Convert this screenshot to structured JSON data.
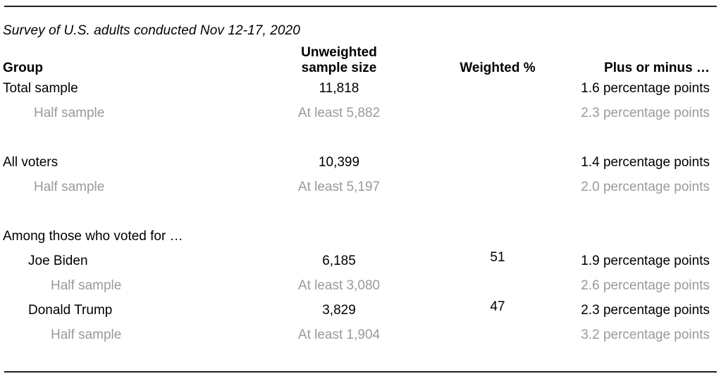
{
  "chart_data": {
    "type": "table",
    "subtitle": "Survey of U.S. adults conducted Nov 12-17, 2020",
    "columns": {
      "group": "Group",
      "unweighted_line1": "Unweighted",
      "unweighted_line2": "sample size",
      "weighted": "Weighted %",
      "moe": "Plus or minus …"
    },
    "rows": [
      {
        "group": "Total sample",
        "unweighted": "11,818",
        "weighted": "",
        "moe": "1.6 percentage points"
      },
      {
        "group": "Half sample",
        "unweighted": "At least 5,882",
        "weighted": "",
        "moe": "2.3 percentage points"
      },
      {
        "group": "All voters",
        "unweighted": "10,399",
        "weighted": "",
        "moe": "1.4 percentage points"
      },
      {
        "group": "Half sample",
        "unweighted": "At least 5,197",
        "weighted": "",
        "moe": "2.0 percentage points"
      },
      {
        "group": "Among those who voted for …",
        "unweighted": "",
        "weighted": "",
        "moe": ""
      },
      {
        "group": "Joe Biden",
        "unweighted": "6,185",
        "weighted": "51",
        "moe": "1.9 percentage points"
      },
      {
        "group": "Half sample",
        "unweighted": "At least 3,080",
        "weighted": "",
        "moe": "2.6 percentage points"
      },
      {
        "group": "Donald Trump",
        "unweighted": "3,829",
        "weighted": "47",
        "moe": "2.3 percentage points"
      },
      {
        "group": "Half sample",
        "unweighted": "At least 1,904",
        "weighted": "",
        "moe": "3.2 percentage points"
      }
    ],
    "colors": {
      "text": "#000000",
      "muted_text": "#9a9a9a",
      "rule": "#1f1f1f",
      "background": "#ffffff"
    }
  }
}
